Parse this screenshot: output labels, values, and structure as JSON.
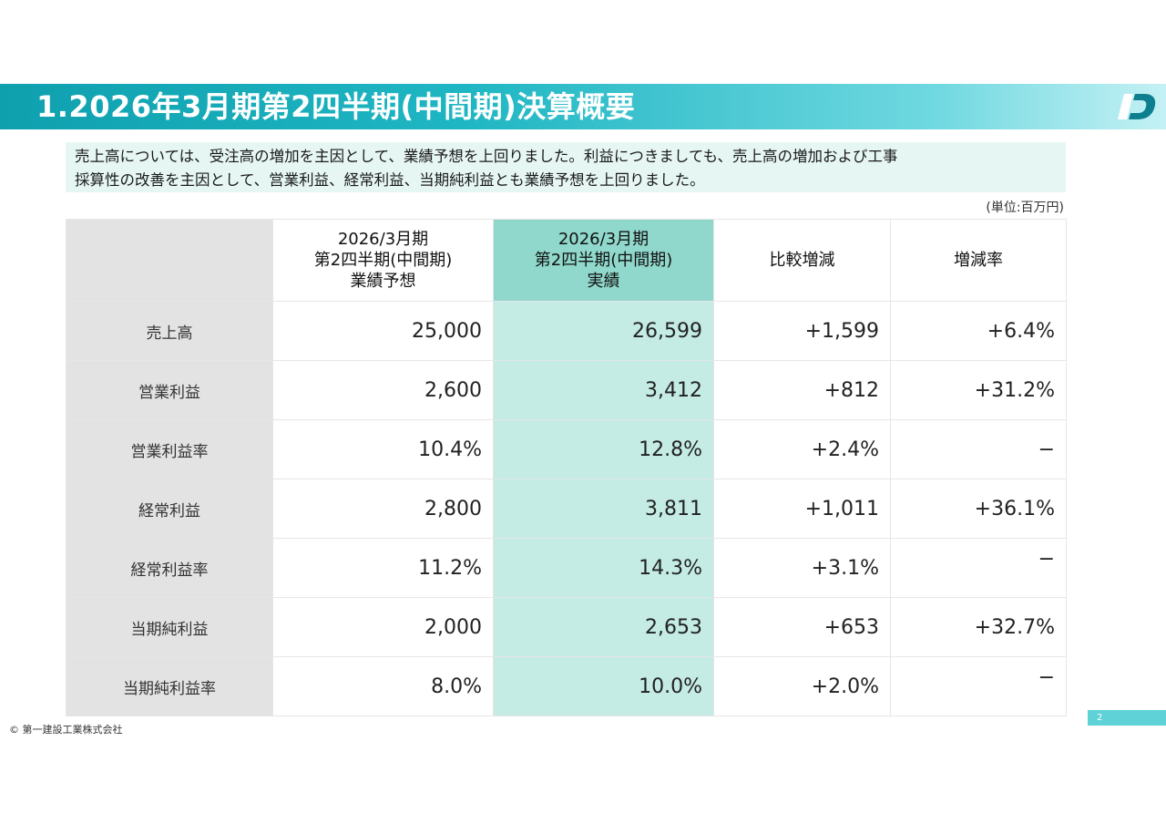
{
  "header": {
    "title": "1.2026年3月期第2四半期(中間期)決算概要",
    "logo_icon": "company-logo-icon"
  },
  "summary": {
    "line1": "売上高については、受注高の増加を主因として、業績予想を上回りました。利益につきましても、売上高の増加および工事",
    "line2": "採算性の改善を主因として、営業利益、経常利益、当期純利益とも業績予想を上回りました。"
  },
  "unit": "(単位:百万円)",
  "table": {
    "columns": [
      {
        "lines": [
          "",
          "",
          ""
        ]
      },
      {
        "lines": [
          "2026/3月期",
          "第2四半期(中間期)",
          "業績予想"
        ]
      },
      {
        "lines": [
          "2026/3月期",
          "第2四半期(中間期)",
          "実績"
        ]
      },
      {
        "lines": [
          "比較増減"
        ]
      },
      {
        "lines": [
          "増減率"
        ]
      }
    ],
    "rows": [
      {
        "label": "売上高",
        "forecast": "25,000",
        "actual": "26,599",
        "diff": "+1,599",
        "rate": "+6.4%"
      },
      {
        "label": "営業利益",
        "forecast": "2,600",
        "actual": "3,412",
        "diff": "+812",
        "rate": "+31.2%"
      },
      {
        "label": "営業利益率",
        "forecast": "10.4%",
        "actual": "12.8%",
        "diff": "+2.4%",
        "rate": "−"
      },
      {
        "label": "経常利益",
        "forecast": "2,800",
        "actual": "3,811",
        "diff": "+1,011",
        "rate": "+36.1%"
      },
      {
        "label": "経常利益率",
        "forecast": "11.2%",
        "actual": "14.3%",
        "diff": "+3.1%",
        "rate": "−"
      },
      {
        "label": "当期純利益",
        "forecast": "2,000",
        "actual": "2,653",
        "diff": "+653",
        "rate": "+32.7%"
      },
      {
        "label": "当期純利益率",
        "forecast": "8.0%",
        "actual": "10.0%",
        "diff": "+2.0%",
        "rate": "−"
      }
    ]
  },
  "footer": {
    "copyright": "© 第一建設工業株式会社",
    "page_number": "2"
  },
  "colors": {
    "header_teal": "#1fb6c3",
    "summary_bg": "#e6f7f3",
    "highlight_header": "#90d8cc",
    "highlight_cell": "#c4ebe4",
    "stub_gray": "#e3e3e3"
  }
}
